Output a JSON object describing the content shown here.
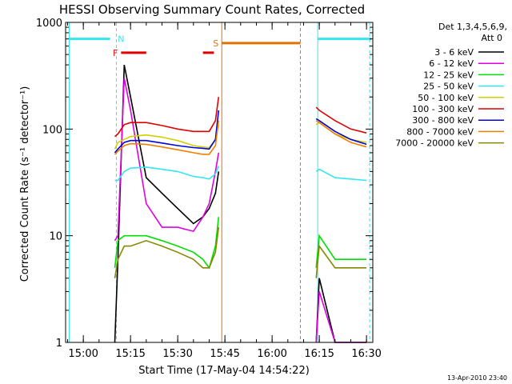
{
  "title": "HESSI Observing Summary Count Rates, Corrected",
  "detector_text": [
    "Det 1,3,4,5,6,9,",
    "Att 0"
  ],
  "timestamp": "13-Apr-2010 23:40",
  "flag_labels": {
    "N": "N",
    "F": "F",
    "S": "S"
  },
  "colors": {
    "3 - 6 keV": "#000000",
    "6 - 12 keV": "#e000e0",
    "12 - 25 keV": "#00e000",
    "25 - 50 keV": "#33e6f0",
    "50 - 100 keV": "#d0d000",
    "100 - 300 keV": "#e00000",
    "300 - 800 keV": "#0000e0",
    "800 - 7000 keV": "#f08000",
    "7000 - 20000 keV": "#888800",
    "night_flag": "#33e6f0",
    "flare_flag": "#e00000",
    "saa_flag": "#e07000"
  },
  "chart_data": {
    "type": "line",
    "title": "HESSI Observing Summary Count Rates, Corrected",
    "xlabel": "Start Time (17-May-04 14:54:22)",
    "ylabel": "Corrected Count Rate (s⁻¹ detector⁻¹)",
    "yscale": "log",
    "ylim": [
      1,
      1000
    ],
    "xlim": [
      "14:54:22",
      "16:32:00"
    ],
    "x_ticks": [
      "15:00",
      "15:15",
      "15:30",
      "15:45",
      "16:00",
      "16:15",
      "16:30"
    ],
    "y_ticks": [
      "1",
      "10",
      "100",
      "1000"
    ],
    "legend_position": "right",
    "x_time": [
      "15:10",
      "15:11",
      "15:13",
      "15:15",
      "15:20",
      "15:25",
      "15:30",
      "15:35",
      "15:38",
      "15:40",
      "15:42",
      "15:43"
    ],
    "x_time_b": [
      "16:14",
      "16:15",
      "16:20",
      "16:25",
      "16:30"
    ],
    "series": [
      {
        "name": "3 - 6 keV",
        "values": [
          1,
          6,
          400,
          200,
          35,
          25,
          18,
          13,
          15,
          18,
          25,
          40
        ],
        "values_b": [
          1,
          4,
          1,
          1,
          1
        ]
      },
      {
        "name": "6 - 12 keV",
        "values": [
          9,
          10,
          300,
          150,
          20,
          12,
          12,
          11,
          15,
          20,
          40,
          60
        ],
        "values_b": [
          1,
          3,
          1,
          1,
          1
        ]
      },
      {
        "name": "12 - 25 keV",
        "values": [
          5,
          9,
          10,
          10,
          10,
          9,
          8,
          7,
          6,
          5,
          8,
          15
        ],
        "values_b": [
          5,
          10,
          6,
          6,
          6
        ]
      },
      {
        "name": "25 - 50 keV",
        "values": [
          33,
          33,
          40,
          43,
          44,
          42,
          40,
          36,
          35,
          34,
          38,
          45
        ],
        "values_b": [
          40,
          42,
          35,
          34,
          33
        ]
      },
      {
        "name": "50 - 100 keV",
        "values": [
          65,
          75,
          80,
          85,
          88,
          84,
          78,
          70,
          68,
          67,
          80,
          110
        ],
        "values_b": [
          110,
          115,
          90,
          80,
          75
        ]
      },
      {
        "name": "100 - 300 keV",
        "values": [
          85,
          90,
          110,
          115,
          115,
          108,
          100,
          95,
          95,
          95,
          120,
          200
        ],
        "values_b": [
          160,
          150,
          120,
          100,
          92
        ]
      },
      {
        "name": "300 - 800 keV",
        "values": [
          60,
          65,
          75,
          78,
          78,
          74,
          70,
          67,
          66,
          65,
          80,
          150
        ],
        "values_b": [
          125,
          120,
          95,
          80,
          72
        ]
      },
      {
        "name": "800 - 7000 keV",
        "values": [
          58,
          62,
          70,
          73,
          72,
          68,
          64,
          60,
          58,
          58,
          70,
          120
        ],
        "values_b": [
          120,
          115,
          90,
          75,
          68
        ]
      },
      {
        "name": "7000 - 20000 keV",
        "values": [
          4,
          6,
          8,
          8,
          9,
          8,
          7,
          6,
          5,
          5,
          7,
          12
        ],
        "values_b": [
          4,
          8,
          5,
          5,
          5
        ]
      }
    ],
    "flags": {
      "night": [
        [
          "14:55:30",
          "15:08:30"
        ],
        [
          "16:14:30",
          "16:31:30"
        ]
      ],
      "flare": [
        [
          "15:12",
          "15:20"
        ],
        [
          "15:38",
          "15:41:30"
        ]
      ],
      "saa": [
        [
          "15:44",
          "16:09"
        ]
      ]
    }
  }
}
